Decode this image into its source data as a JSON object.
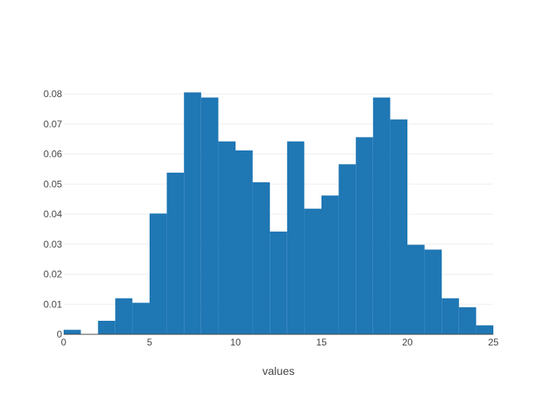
{
  "chart_data": {
    "type": "bar",
    "subtype": "histogram",
    "title": "",
    "xlabel": "values",
    "ylabel": "",
    "xlim": [
      0,
      25
    ],
    "ylim": [
      0,
      0.08
    ],
    "bin_width": 1,
    "bins": [
      {
        "x0": 0,
        "x1": 1,
        "value": 0.0015
      },
      {
        "x0": 1,
        "x1": 2,
        "value": 0
      },
      {
        "x0": 2,
        "x1": 3,
        "value": 0.0045
      },
      {
        "x0": 3,
        "x1": 4,
        "value": 0.012
      },
      {
        "x0": 4,
        "x1": 5,
        "value": 0.0105
      },
      {
        "x0": 5,
        "x1": 6,
        "value": 0.0402
      },
      {
        "x0": 6,
        "x1": 7,
        "value": 0.0538
      },
      {
        "x0": 7,
        "x1": 8,
        "value": 0.0805
      },
      {
        "x0": 8,
        "x1": 9,
        "value": 0.0788
      },
      {
        "x0": 9,
        "x1": 10,
        "value": 0.0642
      },
      {
        "x0": 10,
        "x1": 11,
        "value": 0.0612
      },
      {
        "x0": 11,
        "x1": 12,
        "value": 0.0506
      },
      {
        "x0": 12,
        "x1": 13,
        "value": 0.0342
      },
      {
        "x0": 13,
        "x1": 14,
        "value": 0.0642
      },
      {
        "x0": 14,
        "x1": 15,
        "value": 0.0418
      },
      {
        "x0": 15,
        "x1": 16,
        "value": 0.0462
      },
      {
        "x0": 16,
        "x1": 17,
        "value": 0.0566
      },
      {
        "x0": 17,
        "x1": 18,
        "value": 0.0656
      },
      {
        "x0": 18,
        "x1": 19,
        "value": 0.0788
      },
      {
        "x0": 19,
        "x1": 20,
        "value": 0.0715
      },
      {
        "x0": 20,
        "x1": 21,
        "value": 0.0298
      },
      {
        "x0": 21,
        "x1": 22,
        "value": 0.0282
      },
      {
        "x0": 22,
        "x1": 23,
        "value": 0.012
      },
      {
        "x0": 23,
        "x1": 24,
        "value": 0.009
      },
      {
        "x0": 24,
        "x1": 25,
        "value": 0.003
      }
    ],
    "x_ticks": [
      0,
      5,
      10,
      15,
      20,
      25
    ],
    "x_tick_labels": [
      "0",
      "5",
      "10",
      "15",
      "20",
      "25"
    ],
    "y_ticks": [
      0,
      0.01,
      0.02,
      0.03,
      0.04,
      0.05,
      0.06,
      0.07,
      0.08
    ],
    "y_tick_labels": [
      "0",
      "0.01",
      "0.02",
      "0.03",
      "0.04",
      "0.05",
      "0.06",
      "0.07",
      "0.08"
    ],
    "grid": true,
    "bar_color": "#1f77b4"
  }
}
